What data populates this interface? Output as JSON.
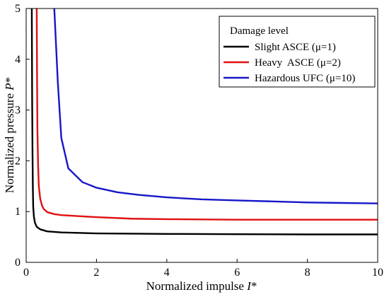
{
  "chart_data": {
    "type": "line",
    "title": "",
    "xlabel_main": "Normalized impulse ",
    "xlabel_var": "I",
    "xlabel_sup": "*",
    "ylabel_main": "Normalized pressure ",
    "ylabel_var": "P",
    "ylabel_sup": "*",
    "xlim": [
      0,
      10
    ],
    "ylim": [
      0,
      5
    ],
    "xticks": [
      0,
      2,
      4,
      6,
      8,
      10
    ],
    "yticks": [
      0,
      1,
      2,
      3,
      4,
      5
    ],
    "grid": false,
    "legend": {
      "title": "Damage level",
      "placement": "top-right"
    },
    "series": [
      {
        "name": "Slight ASCE (μ=1)",
        "color": "#000000",
        "x": [
          0.16,
          0.17,
          0.18,
          0.19,
          0.2,
          0.22,
          0.25,
          0.3,
          0.4,
          0.6,
          1.0,
          2.0,
          4.0,
          6.0,
          8.0,
          10.0
        ],
        "y": [
          5.0,
          3.2,
          2.2,
          1.5,
          1.1,
          0.9,
          0.78,
          0.7,
          0.65,
          0.61,
          0.59,
          0.57,
          0.56,
          0.555,
          0.55,
          0.55
        ]
      },
      {
        "name": "Heavy  ASCE (μ=2)",
        "color": "#e01010",
        "x": [
          0.3,
          0.31,
          0.32,
          0.34,
          0.36,
          0.4,
          0.45,
          0.5,
          0.6,
          0.8,
          1.0,
          1.5,
          2.0,
          3.0,
          4.0,
          6.0,
          8.0,
          10.0
        ],
        "y": [
          5.0,
          3.6,
          2.6,
          1.9,
          1.5,
          1.25,
          1.12,
          1.05,
          0.99,
          0.95,
          0.93,
          0.91,
          0.89,
          0.86,
          0.85,
          0.84,
          0.84,
          0.84
        ]
      },
      {
        "name": "Hazardous UFC (μ=10)",
        "color": "#1616c8",
        "x": [
          0.8,
          0.9,
          1.0,
          1.2,
          1.6,
          2.0,
          2.6,
          3.2,
          4.0,
          5.0,
          6.0,
          7.0,
          8.0,
          9.0,
          10.0
        ],
        "y": [
          5.0,
          3.55,
          2.45,
          1.85,
          1.58,
          1.47,
          1.38,
          1.33,
          1.28,
          1.24,
          1.22,
          1.2,
          1.18,
          1.17,
          1.16
        ]
      }
    ]
  }
}
